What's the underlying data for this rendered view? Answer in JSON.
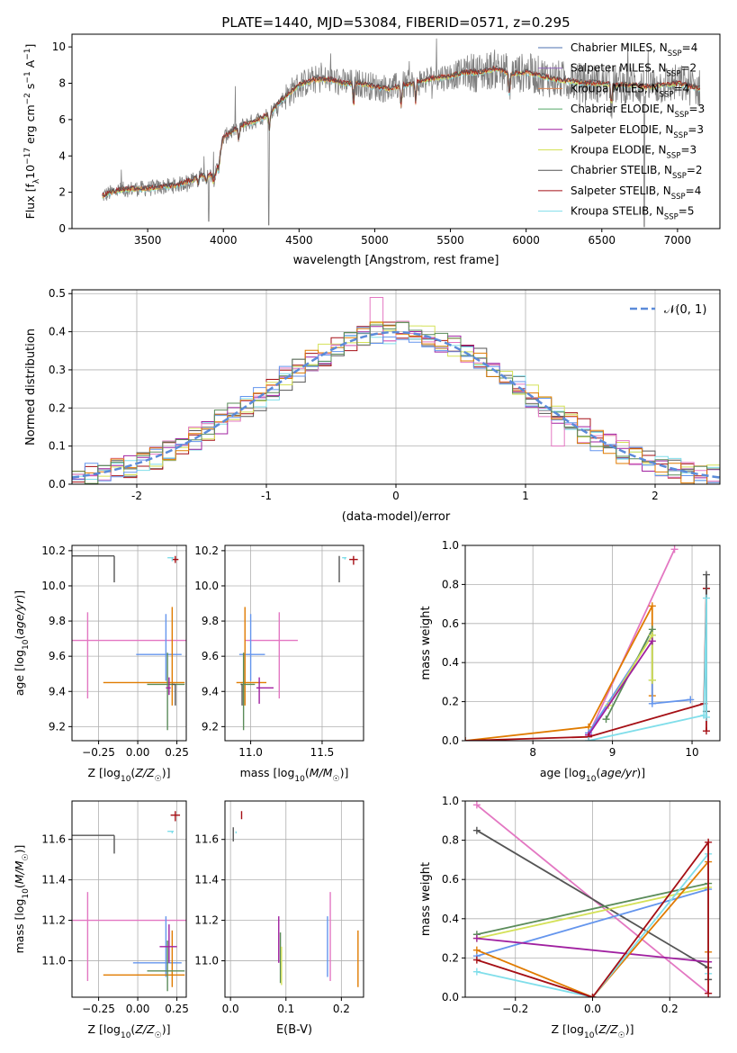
{
  "figure_title": "PLATE=1440, MJD=53084, FIBERID=0571, z=0.295",
  "colors": {
    "Chabrier MILES": "#4c72b0",
    "Salpeter MILES": "#9467bd",
    "Kroupa MILES": "#dd8452",
    "Chabrier ELODIE": "#55a868",
    "Salpeter ELODIE": "#a020a0",
    "Kroupa ELODIE": "#d4e157",
    "Chabrier STELIB": "#555555",
    "Salpeter STELIB": "#a50f15",
    "Kroupa STELIB": "#80deea",
    "pink": "#e377c2",
    "blue": "#6495ed",
    "orange": "#e07b00",
    "green": "#5b8c5a"
  },
  "chart_data": [
    {
      "id": "spectrum",
      "type": "line",
      "xlabel": "wavelength [Angstrom, rest frame]",
      "ylabel": "Flux [f_λ10^-17 erg cm^-2 s^-1 A^-1]",
      "xlim": [
        3000,
        7280
      ],
      "ylim": [
        0,
        10.7
      ],
      "xticks": [
        3500,
        4000,
        4500,
        5000,
        5500,
        6000,
        6500,
        7000
      ],
      "yticks": [
        0,
        2,
        4,
        6,
        8,
        10
      ],
      "legend_position": "top-right",
      "legend": [
        {
          "label": "Chabrier MILES, N",
          "sub": "SSP",
          "tail": "=4"
        },
        {
          "label": "Salpeter MILES, N",
          "sub": "SSP",
          "tail": "=2"
        },
        {
          "label": "Kroupa MILES, N",
          "sub": "SSP",
          "tail": "=4"
        },
        {
          "label": "Chabrier ELODIE, N",
          "sub": "SSP",
          "tail": "=3"
        },
        {
          "label": "Salpeter ELODIE, N",
          "sub": "SSP",
          "tail": "=3"
        },
        {
          "label": "Kroupa ELODIE, N",
          "sub": "SSP",
          "tail": "=3"
        },
        {
          "label": "Chabrier STELIB, N",
          "sub": "SSP",
          "tail": "=2"
        },
        {
          "label": "Salpeter STELIB, N",
          "sub": "SSP",
          "tail": "=4"
        },
        {
          "label": "Kroupa STELIB, N",
          "sub": "SSP",
          "tail": "=5"
        }
      ],
      "continuum": {
        "x": [
          3200,
          3300,
          3400,
          3500,
          3600,
          3700,
          3800,
          3850,
          3950,
          4000,
          4100,
          4200,
          4300,
          4400,
          4500,
          4600,
          4700,
          4800,
          4900,
          5000,
          5100,
          5200,
          5300,
          5400,
          5500,
          5600,
          5700,
          5800,
          5900,
          6000,
          6100,
          6200,
          6300,
          6400,
          6500,
          6600,
          6700,
          6800,
          6900,
          7000,
          7100,
          7150
        ],
        "y": [
          1.8,
          2.1,
          2.2,
          2.2,
          2.3,
          2.4,
          2.7,
          2.9,
          3.0,
          5.0,
          5.6,
          5.9,
          6.3,
          7.2,
          7.9,
          8.2,
          8.2,
          8.0,
          8.0,
          7.8,
          7.7,
          7.9,
          8.1,
          8.3,
          8.4,
          8.6,
          8.6,
          8.8,
          8.5,
          8.6,
          8.4,
          8.2,
          8.1,
          8.0,
          8.0,
          7.9,
          7.9,
          7.8,
          7.9,
          8.0,
          7.8,
          7.7
        ]
      }
    },
    {
      "id": "residuals",
      "type": "bar",
      "xlabel": "(data-model)/error",
      "ylabel": "Normed distribution",
      "xlim": [
        -2.5,
        2.5
      ],
      "ylim": [
        0,
        0.51
      ],
      "xticks": [
        -2,
        -1,
        0,
        1,
        2
      ],
      "yticks": [
        0.0,
        0.1,
        0.2,
        0.3,
        0.4,
        0.5
      ],
      "grid": true,
      "legend_position": "top-right",
      "gaussian_label": "𝒩(0, 1)"
    },
    {
      "id": "age-vs-Z",
      "type": "scatter",
      "xlabel": "Z [log10(Z/Z☉)]",
      "ylabel": "age [log10(age/yr)]",
      "xlim": [
        -0.42,
        0.31
      ],
      "ylim": [
        9.12,
        10.23
      ],
      "xticks": [
        -0.25,
        0.0,
        0.25
      ],
      "xtick_labels": [
        "−0.25",
        "0.00",
        "0.25"
      ],
      "yticks": [
        9.2,
        9.4,
        9.6,
        9.8,
        10.0,
        10.2
      ],
      "points": [
        {
          "x": -0.15,
          "xerr": [
            0.48,
            0.0
          ],
          "y": 10.17,
          "yerr": [
            0.15,
            0.0
          ],
          "c": "Chabrier STELIB"
        },
        {
          "x": 0.24,
          "xerr": [
            0.02,
            0.02
          ],
          "y": 10.15,
          "yerr": [
            0.02,
            0.02
          ],
          "c": "Salpeter STELIB"
        },
        {
          "x": 0.22,
          "xerr": [
            0.03,
            0.01
          ],
          "y": 10.16,
          "yerr": [
            0.02,
            0.0
          ],
          "c": "Kroupa STELIB"
        },
        {
          "x": -0.32,
          "xerr": [
            0.1,
            0.63
          ],
          "y": 9.69,
          "yerr": [
            0.33,
            0.16
          ],
          "c": "pink"
        },
        {
          "x": 0.18,
          "xerr": [
            0.19,
            0.1
          ],
          "y": 9.61,
          "yerr": [
            0.15,
            0.23
          ],
          "c": "blue"
        },
        {
          "x": 0.22,
          "xerr": [
            0.44,
            0.08
          ],
          "y": 9.45,
          "yerr": [
            0.13,
            0.43
          ],
          "c": "orange"
        },
        {
          "x": 0.19,
          "xerr": [
            0.13,
            0.11
          ],
          "y": 9.44,
          "yerr": [
            0.26,
            0.18
          ],
          "c": "green"
        },
        {
          "x": 0.2,
          "xerr": [
            0.02,
            0.01
          ],
          "y": 9.42,
          "yerr": [
            0.04,
            0.06
          ],
          "c": "Salpeter ELODIE"
        },
        {
          "x": 0.24,
          "xerr": [
            0.02,
            0.0
          ],
          "y": 9.44,
          "yerr": [
            0.12,
            0.0
          ],
          "c": "Chabrier STELIB"
        }
      ]
    },
    {
      "id": "age-vs-mass",
      "type": "scatter",
      "xlabel": "mass [log10(M/M☉)]",
      "ylabel": "",
      "xlim": [
        10.82,
        11.79
      ],
      "ylim": [
        9.12,
        10.23
      ],
      "xticks": [
        11.0,
        11.5
      ],
      "xtick_labels": [
        "11.0",
        "11.5"
      ],
      "yticks": [
        9.2,
        9.4,
        9.6,
        9.8,
        10.0,
        10.2
      ],
      "points": [
        {
          "x": 11.62,
          "xerr": [
            0.0,
            0.0
          ],
          "y": 10.17,
          "yerr": [
            0.15,
            0.0
          ],
          "c": "Chabrier STELIB"
        },
        {
          "x": 11.72,
          "xerr": [
            0.03,
            0.03
          ],
          "y": 10.15,
          "yerr": [
            0.03,
            0.02
          ],
          "c": "Salpeter STELIB"
        },
        {
          "x": 11.66,
          "xerr": [
            0.02,
            0.01
          ],
          "y": 10.16,
          "yerr": [
            0.01,
            0.0
          ],
          "c": "Kroupa STELIB"
        },
        {
          "x": 11.2,
          "xerr": [
            0.24,
            0.13
          ],
          "y": 9.69,
          "yerr": [
            0.33,
            0.16
          ],
          "c": "pink"
        },
        {
          "x": 11.0,
          "xerr": [
            0.08,
            0.1
          ],
          "y": 9.61,
          "yerr": [
            0.15,
            0.23
          ],
          "c": "blue"
        },
        {
          "x": 10.96,
          "xerr": [
            0.06,
            0.15
          ],
          "y": 9.45,
          "yerr": [
            0.13,
            0.43
          ],
          "c": "orange"
        },
        {
          "x": 10.95,
          "xerr": [
            0.02,
            0.08
          ],
          "y": 9.44,
          "yerr": [
            0.26,
            0.18
          ],
          "c": "green"
        },
        {
          "x": 11.06,
          "xerr": [
            0.02,
            0.1
          ],
          "y": 9.42,
          "yerr": [
            0.09,
            0.06
          ],
          "c": "Salpeter ELODIE"
        },
        {
          "x": 10.94,
          "xerr": [
            0.01,
            0.0
          ],
          "y": 9.44,
          "yerr": [
            0.12,
            0.0
          ],
          "c": "Chabrier STELIB"
        }
      ]
    },
    {
      "id": "weight-vs-age",
      "type": "line",
      "xlabel": "age [log10(age/yr)]",
      "ylabel": "mass weight",
      "xlim": [
        7.15,
        10.35
      ],
      "ylim": [
        0,
        1.0
      ],
      "xticks": [
        8,
        9,
        10
      ],
      "xtick_labels": [
        "8",
        "9",
        "10"
      ],
      "yticks": [
        0.0,
        0.2,
        0.4,
        0.6,
        0.8,
        1.0
      ],
      "grid": true,
      "series": [
        {
          "c": "pink",
          "x": [
            8.7,
            9.78
          ],
          "y": [
            0.03,
            0.98
          ]
        },
        {
          "c": "orange",
          "x": [
            7.15,
            8.7,
            9.5,
            9.5
          ],
          "y": [
            0.0,
            0.07,
            0.69,
            0.23
          ]
        },
        {
          "c": "blue",
          "x": [
            8.7,
            9.5,
            9.5,
            9.98
          ],
          "y": [
            0.04,
            0.54,
            0.19,
            0.21
          ]
        },
        {
          "c": "green",
          "x": [
            8.92,
            9.5,
            9.5
          ],
          "y": [
            0.11,
            0.57,
            0.31
          ]
        },
        {
          "c": "Kroupa ELODIE",
          "x": [
            8.95,
            9.5,
            9.5
          ],
          "y": [
            0.18,
            0.54,
            0.31
          ]
        },
        {
          "c": "Salpeter ELODIE",
          "x": [
            8.7,
            9.5
          ],
          "y": [
            0.03,
            0.51
          ]
        },
        {
          "c": "Salpeter STELIB",
          "x": [
            7.15,
            8.7,
            10.15,
            10.18,
            10.18
          ],
          "y": [
            0.0,
            0.02,
            0.19,
            0.78,
            0.05
          ]
        },
        {
          "c": "Chabrier STELIB",
          "x": [
            10.18,
            10.18
          ],
          "y": [
            0.85,
            0.15
          ]
        },
        {
          "c": "Kroupa STELIB",
          "x": [
            8.7,
            10.15,
            10.18,
            10.18
          ],
          "y": [
            0.0,
            0.13,
            0.73,
            0.12
          ]
        }
      ]
    },
    {
      "id": "mass-vs-Z",
      "type": "scatter",
      "xlabel": "Z [log10(Z/Z☉)]",
      "ylabel": "mass [log10(M/M☉)]",
      "xlim": [
        -0.42,
        0.31
      ],
      "ylim": [
        10.82,
        11.79
      ],
      "xticks": [
        -0.25,
        0.0,
        0.25
      ],
      "xtick_labels": [
        "−0.25",
        "0.00",
        "0.25"
      ],
      "yticks": [
        11.0,
        11.2,
        11.4,
        11.6
      ],
      "points": [
        {
          "x": -0.15,
          "xerr": [
            0.48,
            0.0
          ],
          "y": 11.62,
          "yerr": [
            0.09,
            0.0
          ],
          "c": "Chabrier STELIB"
        },
        {
          "x": 0.24,
          "xerr": [
            0.03,
            0.03
          ],
          "y": 11.72,
          "yerr": [
            0.03,
            0.02
          ],
          "c": "Salpeter STELIB"
        },
        {
          "x": 0.22,
          "xerr": [
            0.03,
            0.01
          ],
          "y": 11.64,
          "yerr": [
            0.01,
            0.0
          ],
          "c": "Kroupa STELIB"
        },
        {
          "x": -0.32,
          "xerr": [
            0.1,
            0.63
          ],
          "y": 11.2,
          "yerr": [
            0.3,
            0.14
          ],
          "c": "pink"
        },
        {
          "x": 0.18,
          "xerr": [
            0.21,
            0.1
          ],
          "y": 10.99,
          "yerr": [
            0.07,
            0.23
          ],
          "c": "blue"
        },
        {
          "x": 0.22,
          "xerr": [
            0.44,
            0.08
          ],
          "y": 10.93,
          "yerr": [
            0.06,
            0.22
          ],
          "c": "orange"
        },
        {
          "x": 0.19,
          "xerr": [
            0.13,
            0.11
          ],
          "y": 10.95,
          "yerr": [
            0.1,
            0.15
          ],
          "c": "green"
        },
        {
          "x": 0.2,
          "xerr": [
            0.06,
            0.05
          ],
          "y": 11.07,
          "yerr": [
            0.08,
            0.11
          ],
          "c": "Salpeter ELODIE"
        }
      ]
    },
    {
      "id": "mass-vs-EBV",
      "type": "scatter",
      "xlabel": "E(B-V)",
      "ylabel": "",
      "xlim": [
        -0.01,
        0.24
      ],
      "ylim": [
        10.82,
        11.79
      ],
      "xticks": [
        0.0,
        0.1,
        0.2
      ],
      "xtick_labels": [
        "0.0",
        "0.1",
        "0.2"
      ],
      "yticks": [
        11.0,
        11.2,
        11.4,
        11.6
      ],
      "points": [
        {
          "x": 0.005,
          "xerr": [
            0.0,
            0.0
          ],
          "y": 11.62,
          "yerr": [
            0.03,
            0.04
          ],
          "c": "Chabrier STELIB"
        },
        {
          "x": 0.02,
          "xerr": [
            0.0,
            0.0
          ],
          "y": 11.72,
          "yerr": [
            0.02,
            0.02
          ],
          "c": "Salpeter STELIB"
        },
        {
          "x": 0.01,
          "xerr": [
            0.0,
            0.0
          ],
          "y": 11.64,
          "yerr": [
            0.01,
            0.0
          ],
          "c": "Kroupa STELIB"
        },
        {
          "x": 0.18,
          "xerr": [
            0.0,
            0.0
          ],
          "y": 11.2,
          "yerr": [
            0.3,
            0.14
          ],
          "c": "pink"
        },
        {
          "x": 0.175,
          "xerr": [
            0.0,
            0.0
          ],
          "y": 10.99,
          "yerr": [
            0.07,
            0.23
          ],
          "c": "blue"
        },
        {
          "x": 0.23,
          "xerr": [
            0.0,
            0.0
          ],
          "y": 10.99,
          "yerr": [
            0.12,
            0.16
          ],
          "c": "orange"
        },
        {
          "x": 0.09,
          "xerr": [
            0.0,
            0.0
          ],
          "y": 10.99,
          "yerr": [
            0.1,
            0.15
          ],
          "c": "green"
        },
        {
          "x": 0.092,
          "xerr": [
            0.0,
            0.0
          ],
          "y": 10.93,
          "yerr": [
            0.05,
            0.14
          ],
          "c": "Kroupa ELODIE"
        },
        {
          "x": 0.087,
          "xerr": [
            0.0,
            0.0
          ],
          "y": 11.07,
          "yerr": [
            0.08,
            0.15
          ],
          "c": "Salpeter ELODIE"
        }
      ]
    },
    {
      "id": "weight-vs-Z",
      "type": "line",
      "xlabel": "Z [log10(Z/Z☉)]",
      "ylabel": "mass weight",
      "xlim": [
        -0.33,
        0.33
      ],
      "ylim": [
        0,
        1.0
      ],
      "xticks": [
        -0.2,
        0.0,
        0.2
      ],
      "xtick_labels": [
        "−0.2",
        "0.0",
        "0.2"
      ],
      "yticks": [
        0.0,
        0.2,
        0.4,
        0.6,
        0.8,
        1.0
      ],
      "grid": true,
      "series": [
        {
          "c": "pink",
          "x": [
            -0.3,
            0.3
          ],
          "y": [
            0.98,
            0.02
          ]
        },
        {
          "c": "Chabrier STELIB",
          "x": [
            -0.3,
            0.3,
            0.3
          ],
          "y": [
            0.85,
            0.15,
            0.09
          ]
        },
        {
          "c": "green",
          "x": [
            -0.3,
            0.3
          ],
          "y": [
            0.32,
            0.58
          ]
        },
        {
          "c": "Kroupa ELODIE",
          "x": [
            -0.3,
            0.3
          ],
          "y": [
            0.3,
            0.56
          ]
        },
        {
          "c": "blue",
          "x": [
            -0.3,
            0.3
          ],
          "y": [
            0.21,
            0.55
          ]
        },
        {
          "c": "Salpeter ELODIE",
          "x": [
            -0.3,
            0.3
          ],
          "y": [
            0.3,
            0.18
          ]
        },
        {
          "c": "orange",
          "x": [
            -0.3,
            0.0,
            0.3,
            0.3
          ],
          "y": [
            0.24,
            0.0,
            0.69,
            0.23
          ]
        },
        {
          "c": "Kroupa STELIB",
          "x": [
            -0.3,
            0.0,
            0.3,
            0.3
          ],
          "y": [
            0.13,
            0.0,
            0.73,
            0.12
          ]
        },
        {
          "c": "Salpeter STELIB",
          "x": [
            -0.3,
            0.0,
            0.3,
            0.3
          ],
          "y": [
            0.19,
            0.0,
            0.79,
            0.02
          ]
        }
      ]
    }
  ]
}
